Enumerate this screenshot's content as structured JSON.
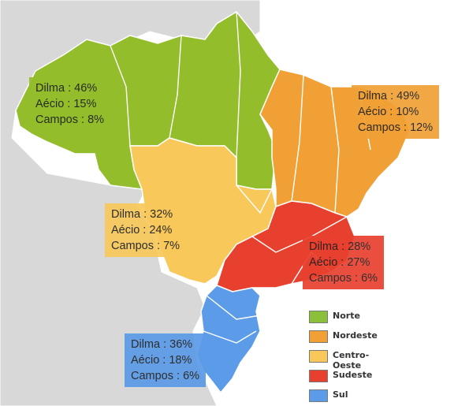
{
  "regions": {
    "norte": {
      "color": "#93bd2a",
      "lines": [
        "Dilma : 46%",
        "Aécio : 15%",
        "Campos : 8%"
      ]
    },
    "nordeste": {
      "color": "#f0a035",
      "lines": [
        "Dilma : 49%",
        "Aécio : 10%",
        "Campos : 12%"
      ]
    },
    "centro_oeste": {
      "color": "#f8c85a",
      "lines": [
        "Dilma : 32%",
        "Aécio : 24%",
        "Campos : 7%"
      ]
    },
    "sudeste": {
      "color": "#e8402e",
      "lines": [
        "Dilma : 28%",
        "Aécio : 27%",
        "Campos : 6%"
      ]
    },
    "sul": {
      "color": "#5b9be8",
      "lines": [
        "Dilma : 36%",
        "Aécio : 18%",
        "Campos : 6%"
      ]
    }
  },
  "legend": [
    {
      "label": "Norte",
      "color": "#8bc13a"
    },
    {
      "label": "Nordeste",
      "color": "#f0a035"
    },
    {
      "label": "Centro-Oeste",
      "color": "#f8c85a"
    },
    {
      "label": "Sudeste",
      "color": "#e8402e"
    },
    {
      "label": "Sul",
      "color": "#5b9be8"
    }
  ],
  "colors": {
    "land": "#d8d8d8",
    "ocean": "#ffffff",
    "borders": "#ffffff"
  }
}
